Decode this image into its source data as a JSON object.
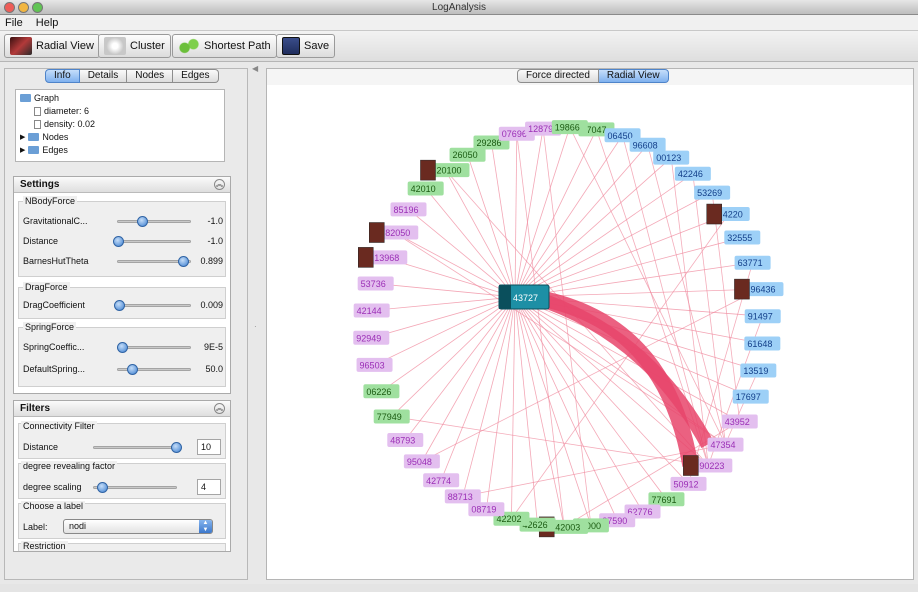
{
  "window": {
    "title": "LogAnalysis"
  },
  "menu": {
    "file": "File",
    "help": "Help"
  },
  "toolbar": {
    "radial": "Radial View",
    "cluster": "Cluster",
    "shortest": "Shortest Path",
    "save": "Save"
  },
  "left_tabs": [
    "Info",
    "Details",
    "Nodes",
    "Edges"
  ],
  "tree": {
    "root": "Graph",
    "diameter": "diameter: 6",
    "density": "density: 0.02",
    "nodes": "Nodes",
    "edges": "Edges"
  },
  "settings": {
    "title": "Settings",
    "nbody": {
      "label": "NBodyForce",
      "rows": [
        {
          "label": "GravitationalC...",
          "value": "-1.0",
          "level": 0.33
        },
        {
          "label": "Distance",
          "value": "-1.0",
          "level": 0.0
        },
        {
          "label": "BarnesHutTheta",
          "value": "0.899",
          "level": 0.9
        }
      ]
    },
    "drag": {
      "label": "DragForce",
      "rows": [
        {
          "label": "DragCoefficient",
          "value": "0.009",
          "level": 0.02
        }
      ]
    },
    "spring": {
      "label": "SpringForce",
      "rows": [
        {
          "label": "SpringCoeffic...",
          "value": "9E-5",
          "level": 0.05
        },
        {
          "label": "DefaultSpring...",
          "value": "50.0",
          "level": 0.2
        }
      ]
    }
  },
  "filters": {
    "title": "Filters",
    "connectivity": {
      "label": "Connectivity Filter",
      "row_label": "Distance",
      "value": "10",
      "level": 1.0
    },
    "degree": {
      "label": "degree revealing factor",
      "row_label": "degree scaling",
      "value": "4",
      "level": 0.1
    },
    "choose": {
      "label": "Choose a label",
      "row_label": "Label:",
      "value": "nodi"
    },
    "restriction": "Restriction"
  },
  "view_tabs": [
    "Force directed",
    "Radial View"
  ],
  "graph": {
    "center": {
      "label": "43727"
    },
    "nodes": [
      {
        "label": "57047",
        "color": "green"
      },
      {
        "label": "06450",
        "color": "blue"
      },
      {
        "label": "96608",
        "color": "blue"
      },
      {
        "label": "00123",
        "color": "blue"
      },
      {
        "label": "42246",
        "color": "blue"
      },
      {
        "label": "53269",
        "color": "blue"
      },
      {
        "label": "4220",
        "color": "blue",
        "img": true
      },
      {
        "label": "32555",
        "color": "blue"
      },
      {
        "label": "63771",
        "color": "blue"
      },
      {
        "label": "96436",
        "color": "blue",
        "img": true
      },
      {
        "label": "91497",
        "color": "blue"
      },
      {
        "label": "61648",
        "color": "blue"
      },
      {
        "label": "13519",
        "color": "blue"
      },
      {
        "label": "17697",
        "color": "blue"
      },
      {
        "label": "43952",
        "color": "purple"
      },
      {
        "label": "47354",
        "color": "purple"
      },
      {
        "label": "90223",
        "color": "purple",
        "img": true
      },
      {
        "label": "50912",
        "color": "purple"
      },
      {
        "label": "77691",
        "color": "green"
      },
      {
        "label": "62776",
        "color": "purple"
      },
      {
        "label": "87590",
        "color": "purple"
      },
      {
        "label": "46000",
        "color": "green"
      },
      {
        "label": "42003",
        "color": "green",
        "img": true
      },
      {
        "label": "42626",
        "color": "green"
      },
      {
        "label": "42202",
        "color": "green"
      },
      {
        "label": "08719",
        "color": "purple"
      },
      {
        "label": "88713",
        "color": "purple"
      },
      {
        "label": "42774",
        "color": "purple"
      },
      {
        "label": "95048",
        "color": "purple"
      },
      {
        "label": "48793",
        "color": "purple"
      },
      {
        "label": "77949",
        "color": "green"
      },
      {
        "label": "06226",
        "color": "green"
      },
      {
        "label": "96503",
        "color": "purple"
      },
      {
        "label": "92949",
        "color": "purple"
      },
      {
        "label": "42144",
        "color": "purple"
      },
      {
        "label": "53736",
        "color": "purple"
      },
      {
        "label": "13968",
        "color": "purple",
        "img": true
      },
      {
        "label": "82050",
        "color": "purple",
        "img": true
      },
      {
        "label": "85196",
        "color": "purple"
      },
      {
        "label": "42010",
        "color": "green"
      },
      {
        "label": "20100",
        "color": "green",
        "img": true
      },
      {
        "label": "26050",
        "color": "green"
      },
      {
        "label": "29286",
        "color": "green"
      },
      {
        "label": "07696",
        "color": "purple"
      },
      {
        "label": "12879",
        "color": "purple"
      },
      {
        "label": "19866",
        "color": "green"
      }
    ],
    "colors": {
      "green": "#9fe09f",
      "blue": "#9dd0f7",
      "purple": "#e3bfef",
      "edge": "#f08a9e",
      "thick": "#e8456b",
      "center": "#1d8fa5"
    }
  }
}
